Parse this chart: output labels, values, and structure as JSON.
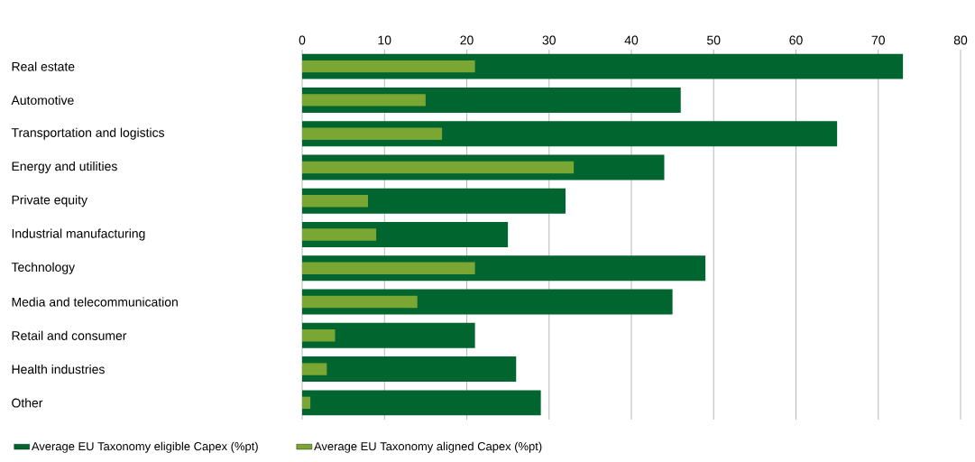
{
  "chart_data": {
    "type": "bar",
    "orientation": "horizontal",
    "categories": [
      "Real estate",
      "Automotive",
      "Transportation and logistics",
      "Energy and utilities",
      "Private equity",
      "Industrial manufacturing",
      "Technology",
      "Media and telecommunication",
      "Retail and consumer",
      "Health industries",
      "Other"
    ],
    "series": [
      {
        "name": "Average EU Taxonomy eligible Capex (%pt)",
        "color": "#00652e",
        "values": [
          73,
          46,
          65,
          44,
          32,
          25,
          49,
          45,
          21,
          26,
          29
        ]
      },
      {
        "name": "Average EU Taxonomy aligned Capex (%pt)",
        "color": "#7aa633",
        "values": [
          21,
          15,
          17,
          33,
          8,
          9,
          21,
          14,
          4,
          3,
          1
        ]
      }
    ],
    "xlim": [
      0,
      80
    ],
    "xticks": [
      0,
      10,
      20,
      30,
      40,
      50,
      60,
      70,
      80
    ],
    "grid": "x",
    "legend": "bottom"
  }
}
